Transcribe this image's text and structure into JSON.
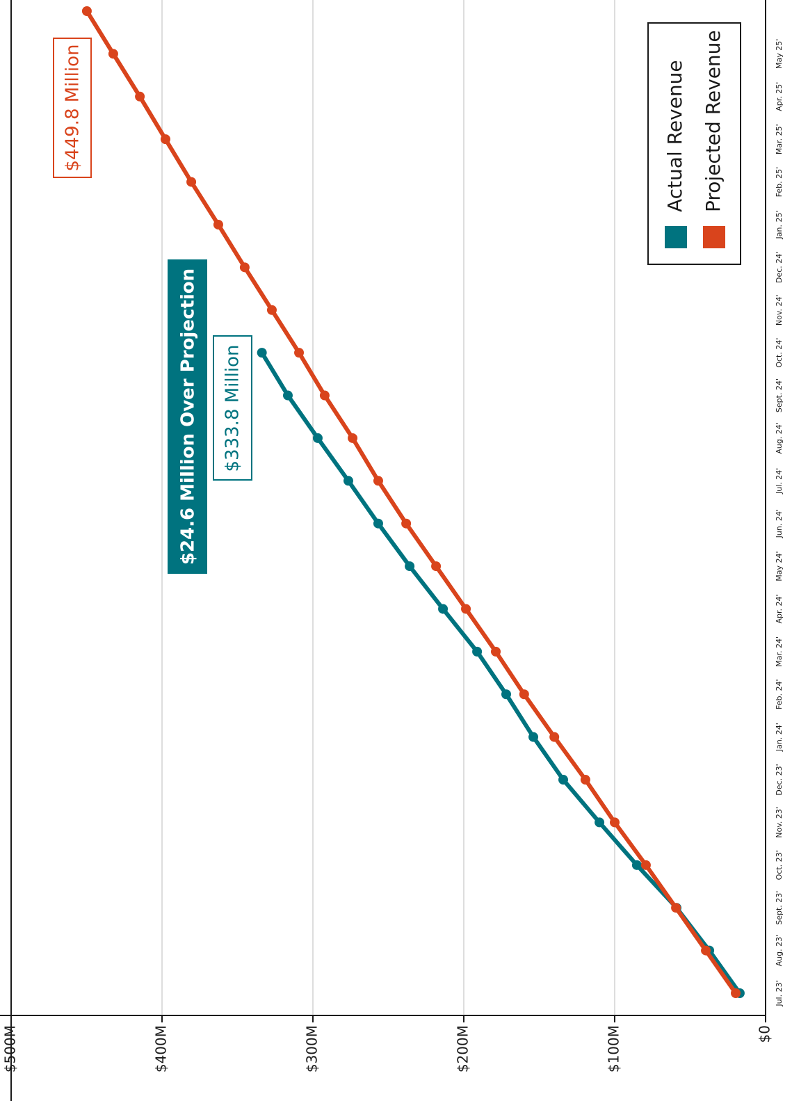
{
  "chart_data": {
    "type": "line",
    "categories": [
      "Jul. 23'",
      "Aug. 23'",
      "Sept. 23'",
      "Oct. 23'",
      "Nov. 23'",
      "Dec. 23'",
      "Jan. 24'",
      "Feb. 24'",
      "Mar. 24'",
      "Apr. 24'",
      "May 24'",
      "Jun. 24'",
      "Jul. 24'",
      "Aug. 24'",
      "Sept. 24'",
      "Oct. 24'",
      "Nov. 24'",
      "Dec. 24'",
      "Jan. 25'",
      "Feb. 25'",
      "Mar. 25'",
      "Apr. 25'",
      "May 25'",
      null
    ],
    "series": [
      {
        "name": "Actual Revenue",
        "color": "#00737f",
        "values": [
          17.1,
          37.3,
          59,
          85.3,
          110.1,
          134.1,
          153.9,
          171.9,
          191.2,
          213.8,
          235.9,
          256.7,
          276.5,
          296.8,
          316.6,
          333.8,
          null,
          null,
          null,
          null,
          null,
          null,
          null,
          null
        ]
      },
      {
        "name": "Projected Revenue",
        "color": "#d9441c",
        "values": [
          19.8,
          39.6,
          59.4,
          79.3,
          100,
          119.4,
          140,
          160,
          178.8,
          198.6,
          218.4,
          238.2,
          256.7,
          273.7,
          292.2,
          309.2,
          327.2,
          345.2,
          362.7,
          380.6,
          397.7,
          414.7,
          432.3,
          449.8
        ]
      }
    ],
    "ylim": [
      0,
      500
    ],
    "yticks": [
      {
        "value": 0,
        "label": "$0"
      },
      {
        "value": 100,
        "label": "$100M"
      },
      {
        "value": 200,
        "label": "$200M"
      },
      {
        "value": 300,
        "label": "$300M"
      },
      {
        "value": 400,
        "label": "$400M"
      },
      {
        "value": 500,
        "label": "$500M"
      }
    ],
    "grid": true,
    "annotations": [
      "$449.8 Million",
      "$24.6 Million Over Projection",
      "$333.8 Million"
    ]
  }
}
